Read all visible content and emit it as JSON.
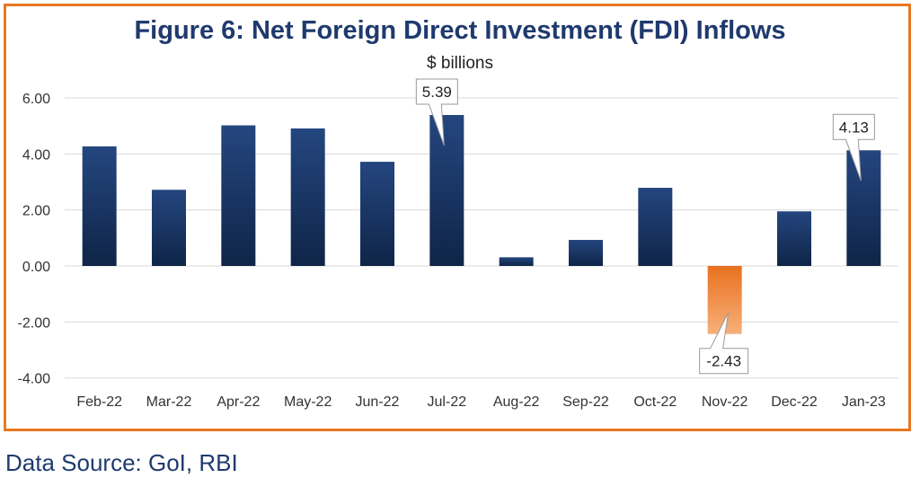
{
  "chart_data": {
    "type": "bar",
    "title": "Figure 6: Net Foreign Direct Investment (FDI) Inflows",
    "subtitle": "$ billions",
    "categories": [
      "Feb-22",
      "Mar-22",
      "Apr-22",
      "May-22",
      "Jun-22",
      "Jul-22",
      "Aug-22",
      "Sep-22",
      "Oct-22",
      "Nov-22",
      "Dec-22",
      "Jan-23"
    ],
    "values": [
      4.27,
      2.72,
      5.02,
      4.91,
      3.72,
      5.39,
      0.31,
      0.93,
      2.79,
      -2.43,
      1.95,
      4.13
    ],
    "ylim": [
      -4,
      6
    ],
    "yticks": [
      "6.00",
      "4.00",
      "2.00",
      "0.00",
      "-2.00",
      "-4.00"
    ],
    "ytick_values": [
      6,
      4,
      2,
      0,
      -2,
      -4
    ],
    "grid": true,
    "data_labels": [
      {
        "category": "Jul-22",
        "text": "5.39"
      },
      {
        "category": "Nov-22",
        "text": "-2.43"
      },
      {
        "category": "Jan-23",
        "text": "4.13"
      }
    ],
    "colors": {
      "positive_top": "#24467f",
      "positive_bottom": "#0f2548",
      "negative_top": "#e8711f",
      "negative_bottom": "#f7b07a",
      "grid": "#d9d9d9",
      "frame": "#e87722"
    }
  },
  "source_text": "Data Source: GoI, RBI"
}
